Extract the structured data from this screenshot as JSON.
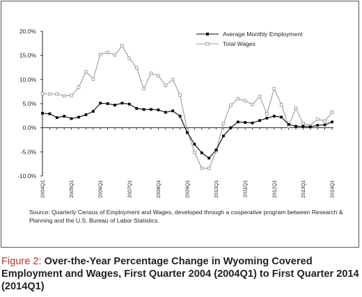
{
  "chart_data": {
    "type": "line",
    "title": "",
    "xlabel": "",
    "ylabel": "",
    "ylim": [
      -10,
      20
    ],
    "y_ticks": [
      "20.0%",
      "15.0%",
      "10.0%",
      "5.0%",
      "0.0%",
      "-5.0%",
      "-10.0%"
    ],
    "y_tick_values": [
      20,
      15,
      10,
      5,
      0,
      -5,
      -10
    ],
    "x_tick_labels": [
      "2004Q1",
      "2005Q1",
      "2006Q1",
      "2007Q1",
      "2008Q1",
      "2009Q1",
      "2010Q1",
      "2011Q1",
      "2012Q1",
      "2013Q1",
      "2014Q1"
    ],
    "grid": false,
    "legend_position": "top-right",
    "series": [
      {
        "name": "Average Monthly Employment",
        "color": "#000000",
        "marker": "filled-square",
        "values": [
          3.0,
          2.9,
          2.1,
          2.4,
          1.9,
          2.2,
          2.7,
          3.4,
          5.1,
          5.0,
          4.7,
          5.1,
          4.9,
          4.0,
          3.8,
          3.8,
          3.7,
          3.2,
          3.5,
          2.4,
          -1.0,
          -3.4,
          -5.2,
          -6.3,
          -4.6,
          -1.7,
          0.0,
          1.2,
          1.1,
          1.0,
          1.5,
          2.0,
          2.4,
          2.2,
          0.7,
          0.3,
          0.3,
          0.2,
          0.5,
          0.6,
          1.2
        ]
      },
      {
        "name": "Total Wages",
        "color": "#9a9a9a",
        "marker": "hollow-square",
        "values": [
          7.1,
          7.0,
          7.0,
          6.6,
          6.7,
          8.4,
          11.6,
          10.1,
          15.2,
          15.6,
          15.1,
          17.0,
          14.4,
          12.4,
          8.1,
          11.3,
          10.8,
          8.8,
          10.0,
          6.8,
          -0.5,
          -5.1,
          -8.4,
          -8.4,
          -4.8,
          0.9,
          4.7,
          6.0,
          5.6,
          4.8,
          6.5,
          2.9,
          8.1,
          4.8,
          0.3,
          4.1,
          0.9,
          0.5,
          1.8,
          1.4,
          3.2
        ]
      }
    ]
  },
  "source_note": "Source: Quarterly Census of Employment and Wages, developed through a cooperative program between Research & Planning and the U.S. Bureau of Labor Statistics.",
  "caption": {
    "label": "Figure 2:",
    "text": "Over-the-Year Percentage Change in Wyoming Covered Employment and Wages, First Quarter 2004 (2004Q1) to First Quarter 2014 (2014Q1)"
  }
}
